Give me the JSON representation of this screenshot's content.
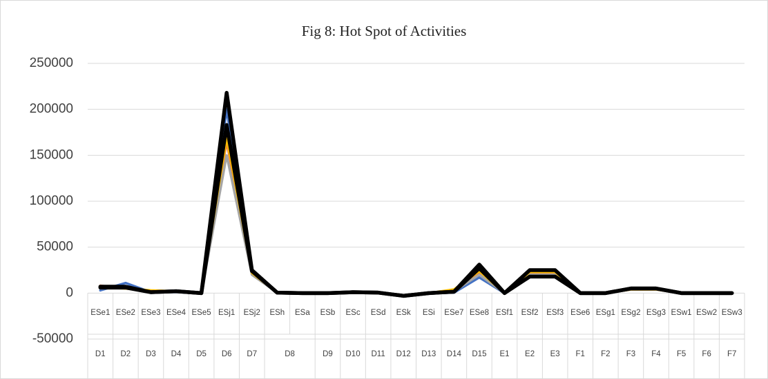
{
  "chart_data": {
    "type": "line",
    "title": "Fig 8: Hot Spot of Activities",
    "categories": [
      "ESe1",
      "ESe2",
      "ESe3",
      "ESe4",
      "ESe5",
      "ESj1",
      "ESj2",
      "ESh",
      "ESa",
      "ESb",
      "ESc",
      "ESd",
      "ESk",
      "ESi",
      "ESe7",
      "ESe8",
      "ESf1",
      "ESf2",
      "ESf3",
      "ESe6",
      "ESg1",
      "ESg2",
      "ESg3",
      "ESw1",
      "ESw2",
      "ESw3"
    ],
    "outer_categories": [
      "D1",
      "D2",
      "D3",
      "D4",
      "D5",
      "D6",
      "D7",
      "D8",
      null,
      "D9",
      "D10",
      "D11",
      "D12",
      "D13",
      "D14",
      "D15",
      "E1",
      "E2",
      "E3",
      "F1",
      "F2",
      "F3",
      "F4",
      "F5",
      "F6",
      "F7"
    ],
    "series": [
      {
        "color": "#4472c4",
        "values": [
          3000,
          11000,
          1000,
          1000,
          0,
          200000,
          22000,
          500,
          0,
          0,
          1000,
          500,
          -3000,
          0,
          500,
          17000,
          0,
          22000,
          22000,
          0,
          0,
          4000,
          4000,
          0,
          0,
          0
        ]
      },
      {
        "color": "#ed7d31",
        "values": [
          8000,
          5000,
          2000,
          2000,
          0,
          165000,
          22000,
          500,
          0,
          0,
          1000,
          500,
          -3000,
          0,
          3000,
          22000,
          0,
          22000,
          22000,
          0,
          0,
          4000,
          4000,
          0,
          0,
          0
        ]
      },
      {
        "color": "#a5a5a5",
        "values": [
          5000,
          6000,
          1000,
          1000,
          0,
          150000,
          20000,
          500,
          0,
          0,
          1000,
          500,
          -3000,
          0,
          2000,
          20000,
          0,
          20000,
          20000,
          0,
          0,
          4000,
          4000,
          0,
          0,
          0
        ]
      },
      {
        "color": "#ffc000",
        "values": [
          6000,
          5000,
          3000,
          2000,
          0,
          170000,
          22000,
          500,
          0,
          0,
          1000,
          500,
          -3000,
          0,
          4000,
          24000,
          0,
          23000,
          23000,
          0,
          0,
          4000,
          4000,
          0,
          0,
          0
        ]
      },
      {
        "color": "#000000",
        "values": [
          6000,
          6000,
          1000,
          2000,
          0,
          218000,
          25000,
          500,
          0,
          0,
          1000,
          500,
          -3000,
          0,
          1500,
          31000,
          0,
          25000,
          25000,
          0,
          0,
          5000,
          5000,
          0,
          0,
          0
        ]
      },
      {
        "color": "#000000",
        "values": [
          7000,
          7000,
          1000,
          2000,
          0,
          183000,
          24000,
          500,
          0,
          0,
          1000,
          500,
          -3000,
          0,
          1500,
          27000,
          0,
          18000,
          18000,
          0,
          0,
          5000,
          5000,
          0,
          0,
          0
        ]
      }
    ],
    "ylim": [
      -50000,
      250000
    ],
    "yticks": [
      -50000,
      0,
      50000,
      100000,
      150000,
      200000,
      250000
    ],
    "grid": true
  }
}
